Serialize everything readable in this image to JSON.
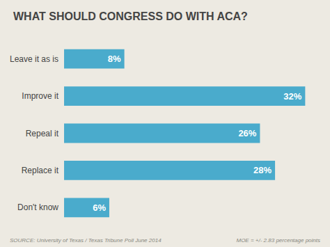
{
  "chart_data": {
    "type": "bar",
    "orientation": "horizontal",
    "title": "WHAT SHOULD CONGRESS DO WITH ACA?",
    "categories": [
      "Leave it as is",
      "Improve it",
      "Repeal it",
      "Replace it",
      "Don't know"
    ],
    "values": [
      8,
      32,
      26,
      28,
      6
    ],
    "value_labels": [
      "8%",
      "32%",
      "26%",
      "28%",
      "6%"
    ],
    "data_labels": true,
    "color": "#4aabcc",
    "xlim": [
      0,
      34
    ],
    "tick_labels": "y",
    "grid": false,
    "annotations": [
      "SOURCE: University of Texas / Texas Tribune Poll June 2014",
      "MOE = +/- 2.83 percentage points"
    ]
  }
}
